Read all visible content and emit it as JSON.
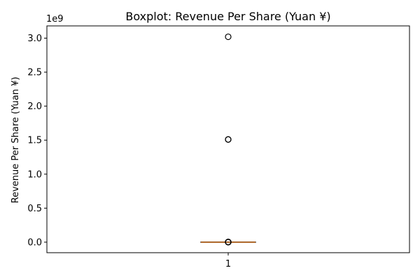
{
  "chart_data": {
    "type": "boxplot",
    "title": "Boxplot:  Revenue Per Share (Yuan ¥)",
    "xlabel": "",
    "ylabel": "Revenue Per Share (Yuan ¥)",
    "offset_text": "1e9",
    "ylim": [
      -0.155,
      3.18
    ],
    "y_ticks": [
      0.0,
      0.5,
      1.0,
      1.5,
      2.0,
      2.5,
      3.0
    ],
    "y_tick_labels": [
      "0.0",
      "0.5",
      "1.0",
      "1.5",
      "2.0",
      "2.5",
      "3.0"
    ],
    "categories": [
      "1"
    ],
    "box": {
      "whisker_low": 0.0,
      "q1": 0.0,
      "median": 0.0,
      "q3": 0.0,
      "whisker_high": 0.0
    },
    "outliers": [
      3.02,
      1.51,
      1.51,
      0.003,
      0.002,
      0.001,
      0.0015,
      0.0005,
      0.0008
    ],
    "colors": {
      "median": "#e58a3a",
      "box": "#000000",
      "outlier": "#000000"
    },
    "grid": false
  }
}
